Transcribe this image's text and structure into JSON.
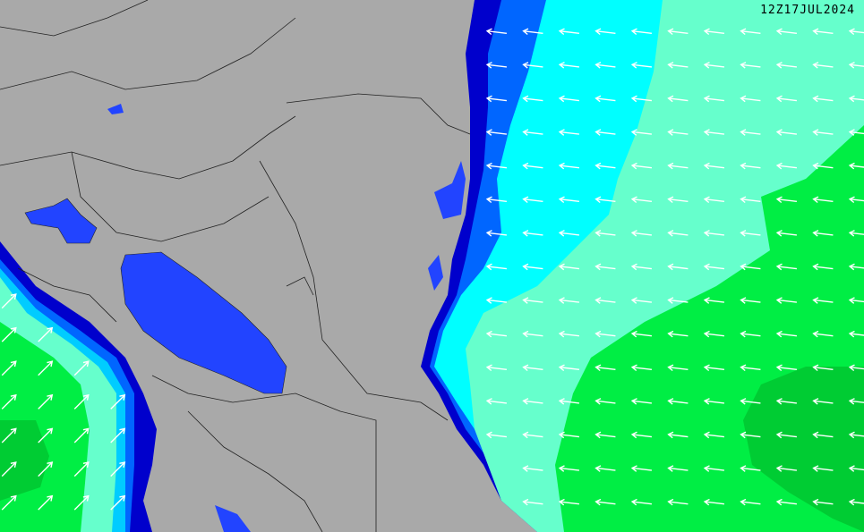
{
  "timestamp": "12Z17JUL2024",
  "colors": {
    "land": "#a9a9a9",
    "lake": "#2244ff",
    "band_darkblue": "#0000cc",
    "band_blue": "#0066ff",
    "band_lightblue": "#00ccff",
    "band_cyan": "#00ffff",
    "band_aquamarine": "#66ffcc",
    "band_green": "#00ee44",
    "band_darkgreen": "#00cc33",
    "arrow": "#ffffff",
    "border": "#222222"
  },
  "arrows": {
    "east_ocean_direction": "west",
    "west_ocean_direction": "northeast"
  }
}
